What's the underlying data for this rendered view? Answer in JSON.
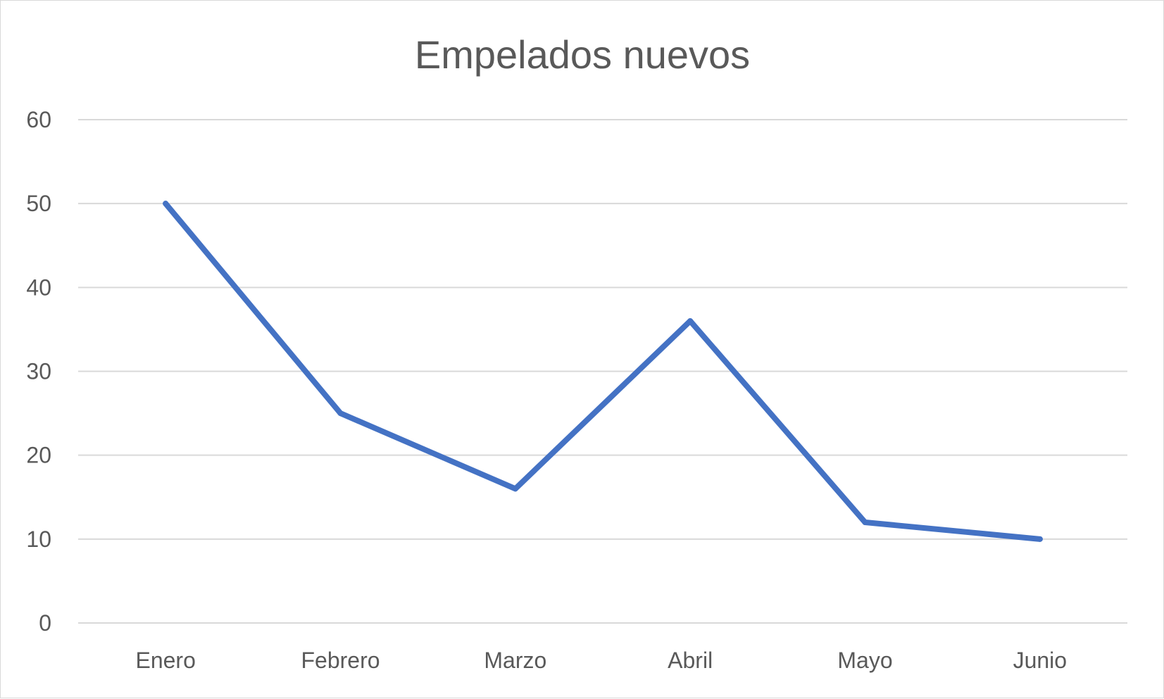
{
  "chart_data": {
    "type": "line",
    "title": "Empelados nuevos",
    "xlabel": "",
    "ylabel": "",
    "categories": [
      "Enero",
      "Febrero",
      "Marzo",
      "Abril",
      "Mayo",
      "Junio"
    ],
    "series": [
      {
        "values": [
          50,
          25,
          16,
          36,
          12,
          10
        ]
      }
    ],
    "ylim": [
      0,
      60
    ],
    "yticks": [
      0,
      10,
      20,
      30,
      40,
      50,
      60
    ],
    "grid": true,
    "legend": "none",
    "colors": {
      "series": "#4472C4",
      "grid": "#d9d9d9",
      "text": "#595959"
    }
  }
}
